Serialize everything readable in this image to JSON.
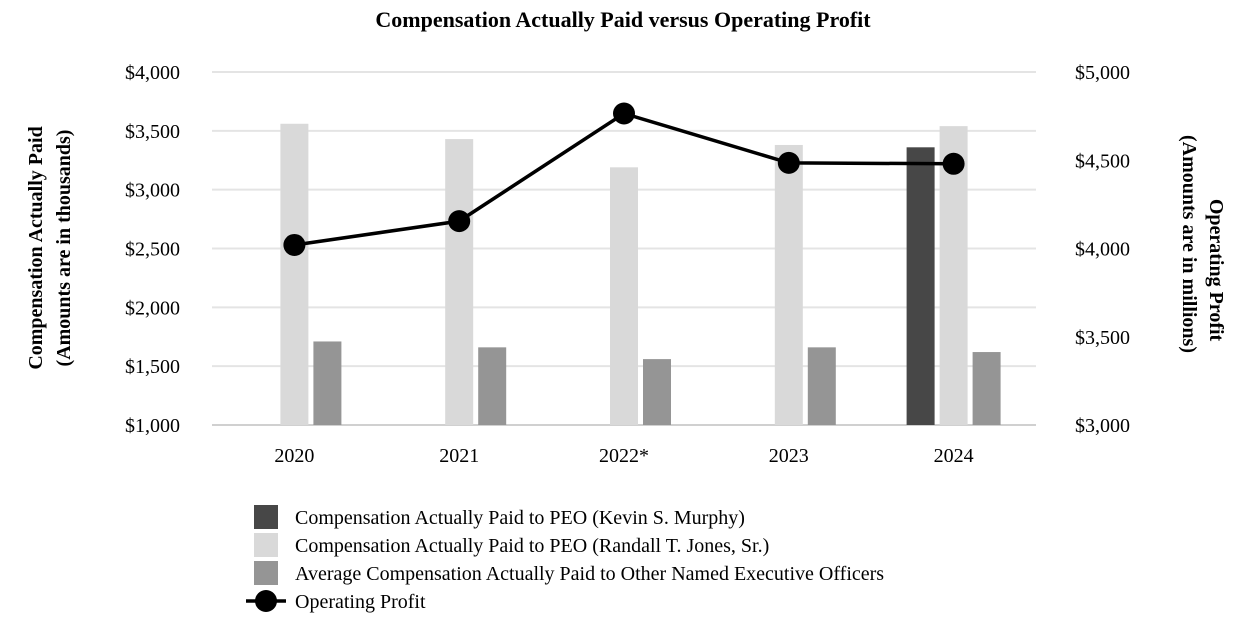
{
  "chart_data": {
    "type": "bar",
    "title": "Compensation Actually Paid versus Operating Profit",
    "categories": [
      "2020",
      "2021",
      "2022*",
      "2023",
      "2024"
    ],
    "y_left": {
      "label_line1": "Compensation Actually Paid",
      "label_line2": "(Amounts are in thousands)",
      "range": [
        1000,
        4000
      ],
      "ticks": [
        1000,
        1500,
        2000,
        2500,
        3000,
        3500,
        4000
      ],
      "tick_labels": [
        "$1,000",
        "$1,500",
        "$2,000",
        "$2,500",
        "$3,000",
        "$3,500",
        "$4,000"
      ]
    },
    "y_right": {
      "label_line1": "Operating Profit",
      "label_line2": "(Amounts are in millions)",
      "range": [
        3000,
        5000
      ],
      "ticks": [
        3000,
        3500,
        4000,
        4500,
        5000
      ],
      "tick_labels": [
        "$3,000",
        "$3,500",
        "$4,000",
        "$4,500",
        "$5,000"
      ]
    },
    "grid": true,
    "legend_position": "bottom",
    "series": [
      {
        "name": "Compensation Actually Paid to PEO (Kevin S. Murphy)",
        "kind": "bar",
        "axis": "left",
        "color": "#474747",
        "values": [
          null,
          null,
          null,
          null,
          3360
        ]
      },
      {
        "name": "Compensation Actually Paid to PEO (Randall T. Jones, Sr.)",
        "kind": "bar",
        "axis": "left",
        "color": "#d9d9d9",
        "values": [
          3560,
          3430,
          3190,
          3380,
          3540
        ]
      },
      {
        "name": "Average Compensation Actually Paid to Other Named Executive Officers",
        "kind": "bar",
        "axis": "left",
        "color": "#959595",
        "values": [
          1710,
          1660,
          1560,
          1660,
          1620
        ]
      },
      {
        "name": "Operating Profit",
        "kind": "line",
        "axis": "right",
        "color": "#000000",
        "values": [
          4020,
          4155,
          4765,
          4485,
          4480
        ]
      }
    ]
  }
}
